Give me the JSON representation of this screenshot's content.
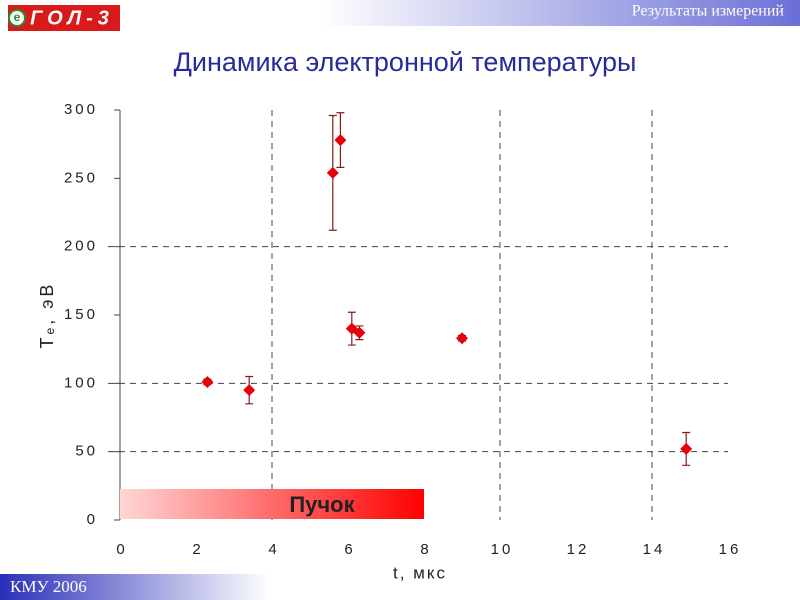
{
  "header": {
    "logo_mark": "e",
    "logo": "ГОЛ-3",
    "title": "Результаты измерений"
  },
  "footer": "КМУ 2006",
  "chart_data": {
    "type": "scatter",
    "title": "Динамика электронной температуры",
    "xlabel": "t, мкс",
    "ylabel": "Tₑ, эВ",
    "xlim": [
      0,
      16
    ],
    "xticks": [
      0,
      2,
      4,
      6,
      8,
      10,
      12,
      14,
      16
    ],
    "ylim": [
      0,
      300
    ],
    "yticks": [
      0,
      50,
      100,
      150,
      200,
      250,
      300
    ],
    "xgrid": [
      4,
      10,
      14
    ],
    "ygrid": [
      50,
      100,
      200
    ],
    "series": [
      {
        "color": "#e8000b",
        "error_color": "#8b1a1a",
        "x": [
          2.3,
          3.4,
          5.6,
          5.8,
          6.1,
          6.3,
          9.0,
          14.9
        ],
        "values": [
          101,
          95,
          254,
          278,
          140,
          137,
          133,
          52
        ],
        "errors": [
          2,
          10,
          42,
          20,
          12,
          5,
          2,
          12
        ]
      }
    ],
    "annotations": [
      {
        "text": "Пучок",
        "x": [
          0,
          8
        ]
      }
    ]
  }
}
